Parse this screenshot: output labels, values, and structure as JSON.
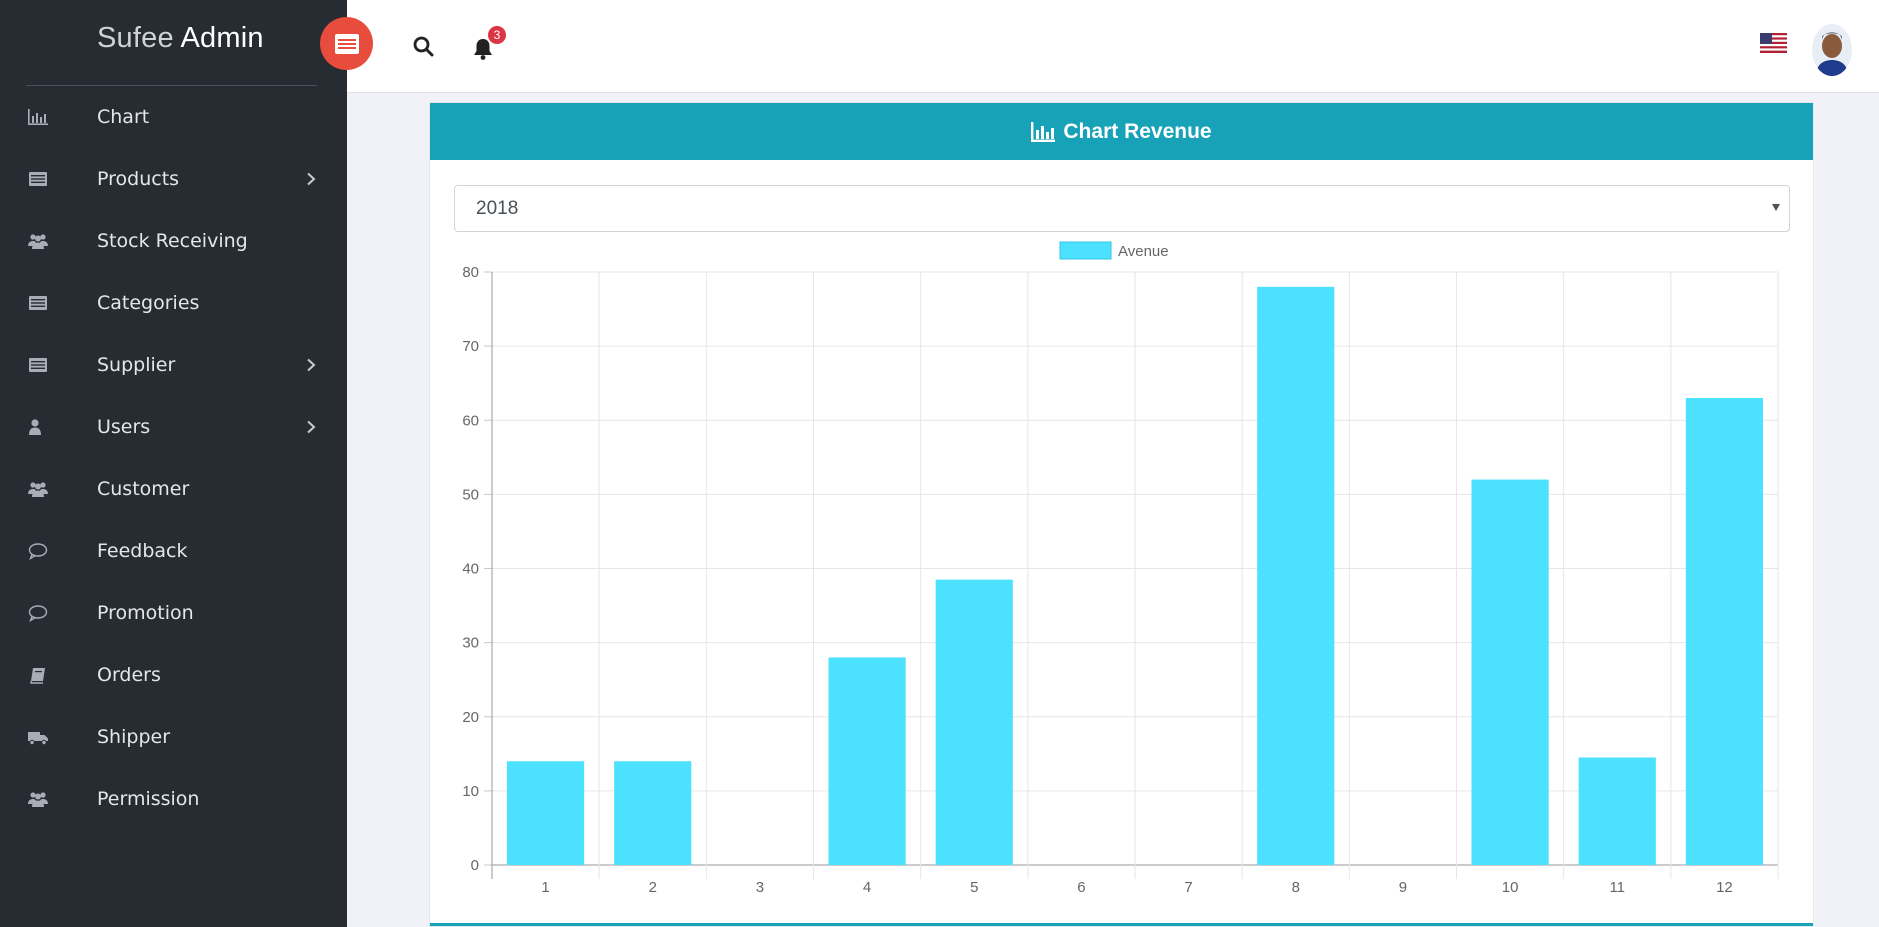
{
  "brand": {
    "light": "Sufee",
    "bold": "Admin"
  },
  "sidebar": {
    "items": [
      {
        "label": "Chart",
        "icon": "bar-chart-icon",
        "has_submenu": false
      },
      {
        "label": "Products",
        "icon": "list-icon",
        "has_submenu": true
      },
      {
        "label": "Stock Receiving",
        "icon": "users-icon",
        "has_submenu": false
      },
      {
        "label": "Categories",
        "icon": "list-icon",
        "has_submenu": false
      },
      {
        "label": "Supplier",
        "icon": "list-icon",
        "has_submenu": true
      },
      {
        "label": "Users",
        "icon": "user-icon",
        "has_submenu": true
      },
      {
        "label": "Customer",
        "icon": "users-icon",
        "has_submenu": false
      },
      {
        "label": "Feedback",
        "icon": "comment-icon",
        "has_submenu": false
      },
      {
        "label": "Promotion",
        "icon": "comment-icon",
        "has_submenu": false
      },
      {
        "label": "Orders",
        "icon": "book-icon",
        "has_submenu": false
      },
      {
        "label": "Shipper",
        "icon": "truck-icon",
        "has_submenu": false
      },
      {
        "label": "Permission",
        "icon": "users-icon",
        "has_submenu": false
      }
    ]
  },
  "header": {
    "notification_count": "3",
    "flag": "us-flag-icon"
  },
  "card": {
    "title": "Chart Revenue",
    "year_select": {
      "value": "2018"
    }
  },
  "colors": {
    "sidebar_bg": "#272c33",
    "accent": "#17a2b8",
    "toggle": "#e84c3d",
    "bar_fill": "#4be1ff",
    "badge": "#dc3545"
  },
  "chart_data": {
    "type": "bar",
    "categories": [
      "1",
      "2",
      "3",
      "4",
      "5",
      "6",
      "7",
      "8",
      "9",
      "10",
      "11",
      "12"
    ],
    "series": [
      {
        "name": "Avenue",
        "values": [
          14,
          14,
          0,
          28,
          38.5,
          0,
          0,
          78,
          0,
          52,
          14.5,
          63
        ]
      }
    ],
    "ylim": [
      0,
      80
    ],
    "yticks": [
      0,
      10,
      20,
      30,
      40,
      50,
      60,
      70,
      80
    ],
    "grid": true,
    "legend": "top"
  }
}
